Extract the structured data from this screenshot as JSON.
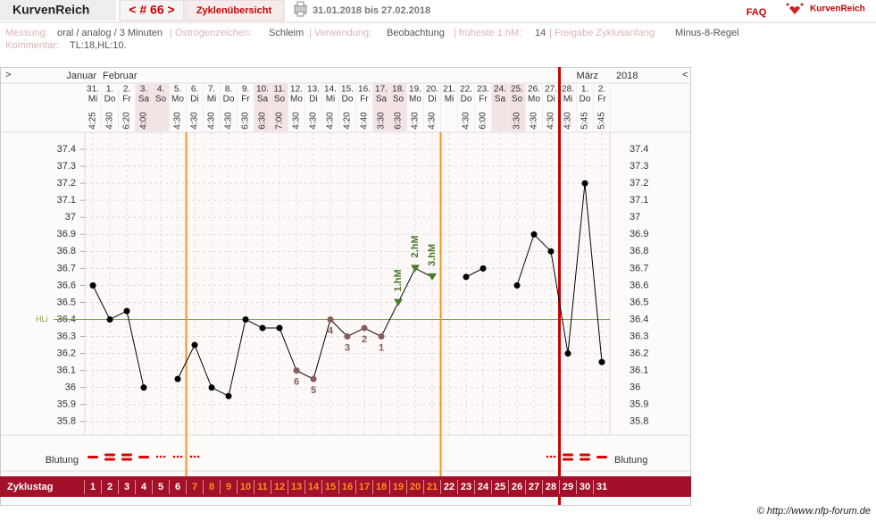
{
  "header": {
    "app": "KurvenReich",
    "cycle_nav": "< # 66 >",
    "tab": "Zyklenübersicht",
    "range": "31.01.2018 bis 27.02.2018",
    "faq": "FAQ",
    "logo": "KurvenReich"
  },
  "info": [
    {
      "label": "Messung:",
      "value": "oral / analog / 3 Minuten"
    },
    {
      "label": "| Östrogenzeichen:",
      "value": "Schleim"
    },
    {
      "label": "| Verwendung:",
      "value": "Beobachtung"
    },
    {
      "label": "| früheste 1.hM:",
      "value": "14"
    },
    {
      "label": "| Freigabe Zyklusanfang:",
      "value": "Minus-8-Regel"
    }
  ],
  "comment": {
    "label": "Kommentar:",
    "value": "TL:18,HL:10."
  },
  "footer": "© http://www.nfp-forum.de",
  "chart_data": {
    "type": "line",
    "nav_left": ">",
    "nav_right": "<",
    "year": "2018",
    "months": [
      "Januar",
      "Februar",
      "März"
    ],
    "days": [
      "31.",
      "1.",
      "2.",
      "3.",
      "4.",
      "5.",
      "6.",
      "7.",
      "8.",
      "9.",
      "10.",
      "11.",
      "12.",
      "13.",
      "14.",
      "15.",
      "16.",
      "17.",
      "18.",
      "19.",
      "20.",
      "21.",
      "22.",
      "23.",
      "24.",
      "25.",
      "26.",
      "27.",
      "28.",
      "1.",
      "2."
    ],
    "weekdays": [
      "Mi",
      "Do",
      "Fr",
      "Sa",
      "So",
      "Mo",
      "Di",
      "Mi",
      "Do",
      "Fr",
      "Sa",
      "So",
      "Mo",
      "Di",
      "Mi",
      "Do",
      "Fr",
      "Sa",
      "So",
      "Mo",
      "Di",
      "Mi",
      "Do",
      "Fr",
      "Sa",
      "So",
      "Mo",
      "Di",
      "Mi",
      "Do",
      "Fr"
    ],
    "times": [
      "4:25",
      "4:30",
      "6:20",
      "4:00",
      null,
      "4:30",
      "4:30",
      "4:30",
      "4:30",
      "6:30",
      "6:30",
      "7:00",
      "4:30",
      "4:30",
      "4:30",
      "4:20",
      "4:40",
      "3:30",
      "6:30",
      "4:30",
      "4:30",
      null,
      "4:30",
      "6:00",
      null,
      "3:30",
      "4:30",
      "4:30",
      "4:30",
      "5:45",
      "5:45"
    ],
    "temperatures": [
      36.6,
      36.4,
      36.45,
      36.0,
      null,
      36.05,
      36.25,
      36.0,
      35.95,
      36.4,
      36.35,
      36.35,
      36.1,
      36.05,
      36.4,
      36.3,
      36.35,
      36.3,
      36.5,
      36.7,
      36.65,
      null,
      36.65,
      36.7,
      null,
      36.6,
      36.9,
      36.8,
      36.2,
      37.2,
      36.15
    ],
    "color": "#000000",
    "ylim": [
      35.72,
      37.5
    ],
    "yticks": [
      37.4,
      37.3,
      37.2,
      37.1,
      37,
      36.9,
      36.8,
      36.7,
      36.6,
      36.5,
      36.4,
      36.3,
      36.2,
      36.1,
      36,
      35.9,
      35.8
    ],
    "grid": true,
    "coverline": {
      "label": "HLi",
      "value": 36.4,
      "color": "#7fa050"
    },
    "low_labels": [
      null,
      null,
      null,
      null,
      null,
      null,
      null,
      null,
      null,
      null,
      null,
      null,
      "6",
      "5",
      "4",
      "3",
      "2",
      "1",
      null,
      null,
      null,
      null,
      null,
      null,
      null,
      null,
      null,
      null,
      null,
      null,
      null
    ],
    "high_labels": [
      null,
      null,
      null,
      null,
      null,
      null,
      null,
      null,
      null,
      null,
      null,
      null,
      null,
      null,
      null,
      null,
      null,
      null,
      "1.hM",
      "2.hM",
      "3.hM",
      null,
      null,
      null,
      null,
      null,
      null,
      null,
      null,
      null,
      null
    ],
    "phase_lines": [
      {
        "after": 6,
        "color": "#f7941d"
      },
      {
        "after": 21,
        "color": "#f7941d"
      },
      {
        "after": 28,
        "color": "#cc0000"
      }
    ],
    "bleeding_label": "Blutung",
    "bleeding": [
      2,
      3,
      3,
      2,
      1,
      1,
      1,
      null,
      null,
      null,
      null,
      null,
      null,
      null,
      null,
      null,
      null,
      null,
      null,
      null,
      null,
      null,
      null,
      null,
      null,
      null,
      null,
      1,
      3,
      3,
      2
    ],
    "cycle_label": "Zyklustag",
    "cycle_days": [
      1,
      2,
      3,
      4,
      5,
      6,
      7,
      8,
      9,
      10,
      11,
      12,
      13,
      14,
      15,
      16,
      17,
      18,
      19,
      20,
      21,
      22,
      23,
      24,
      25,
      26,
      27,
      28,
      29,
      30,
      31
    ]
  }
}
